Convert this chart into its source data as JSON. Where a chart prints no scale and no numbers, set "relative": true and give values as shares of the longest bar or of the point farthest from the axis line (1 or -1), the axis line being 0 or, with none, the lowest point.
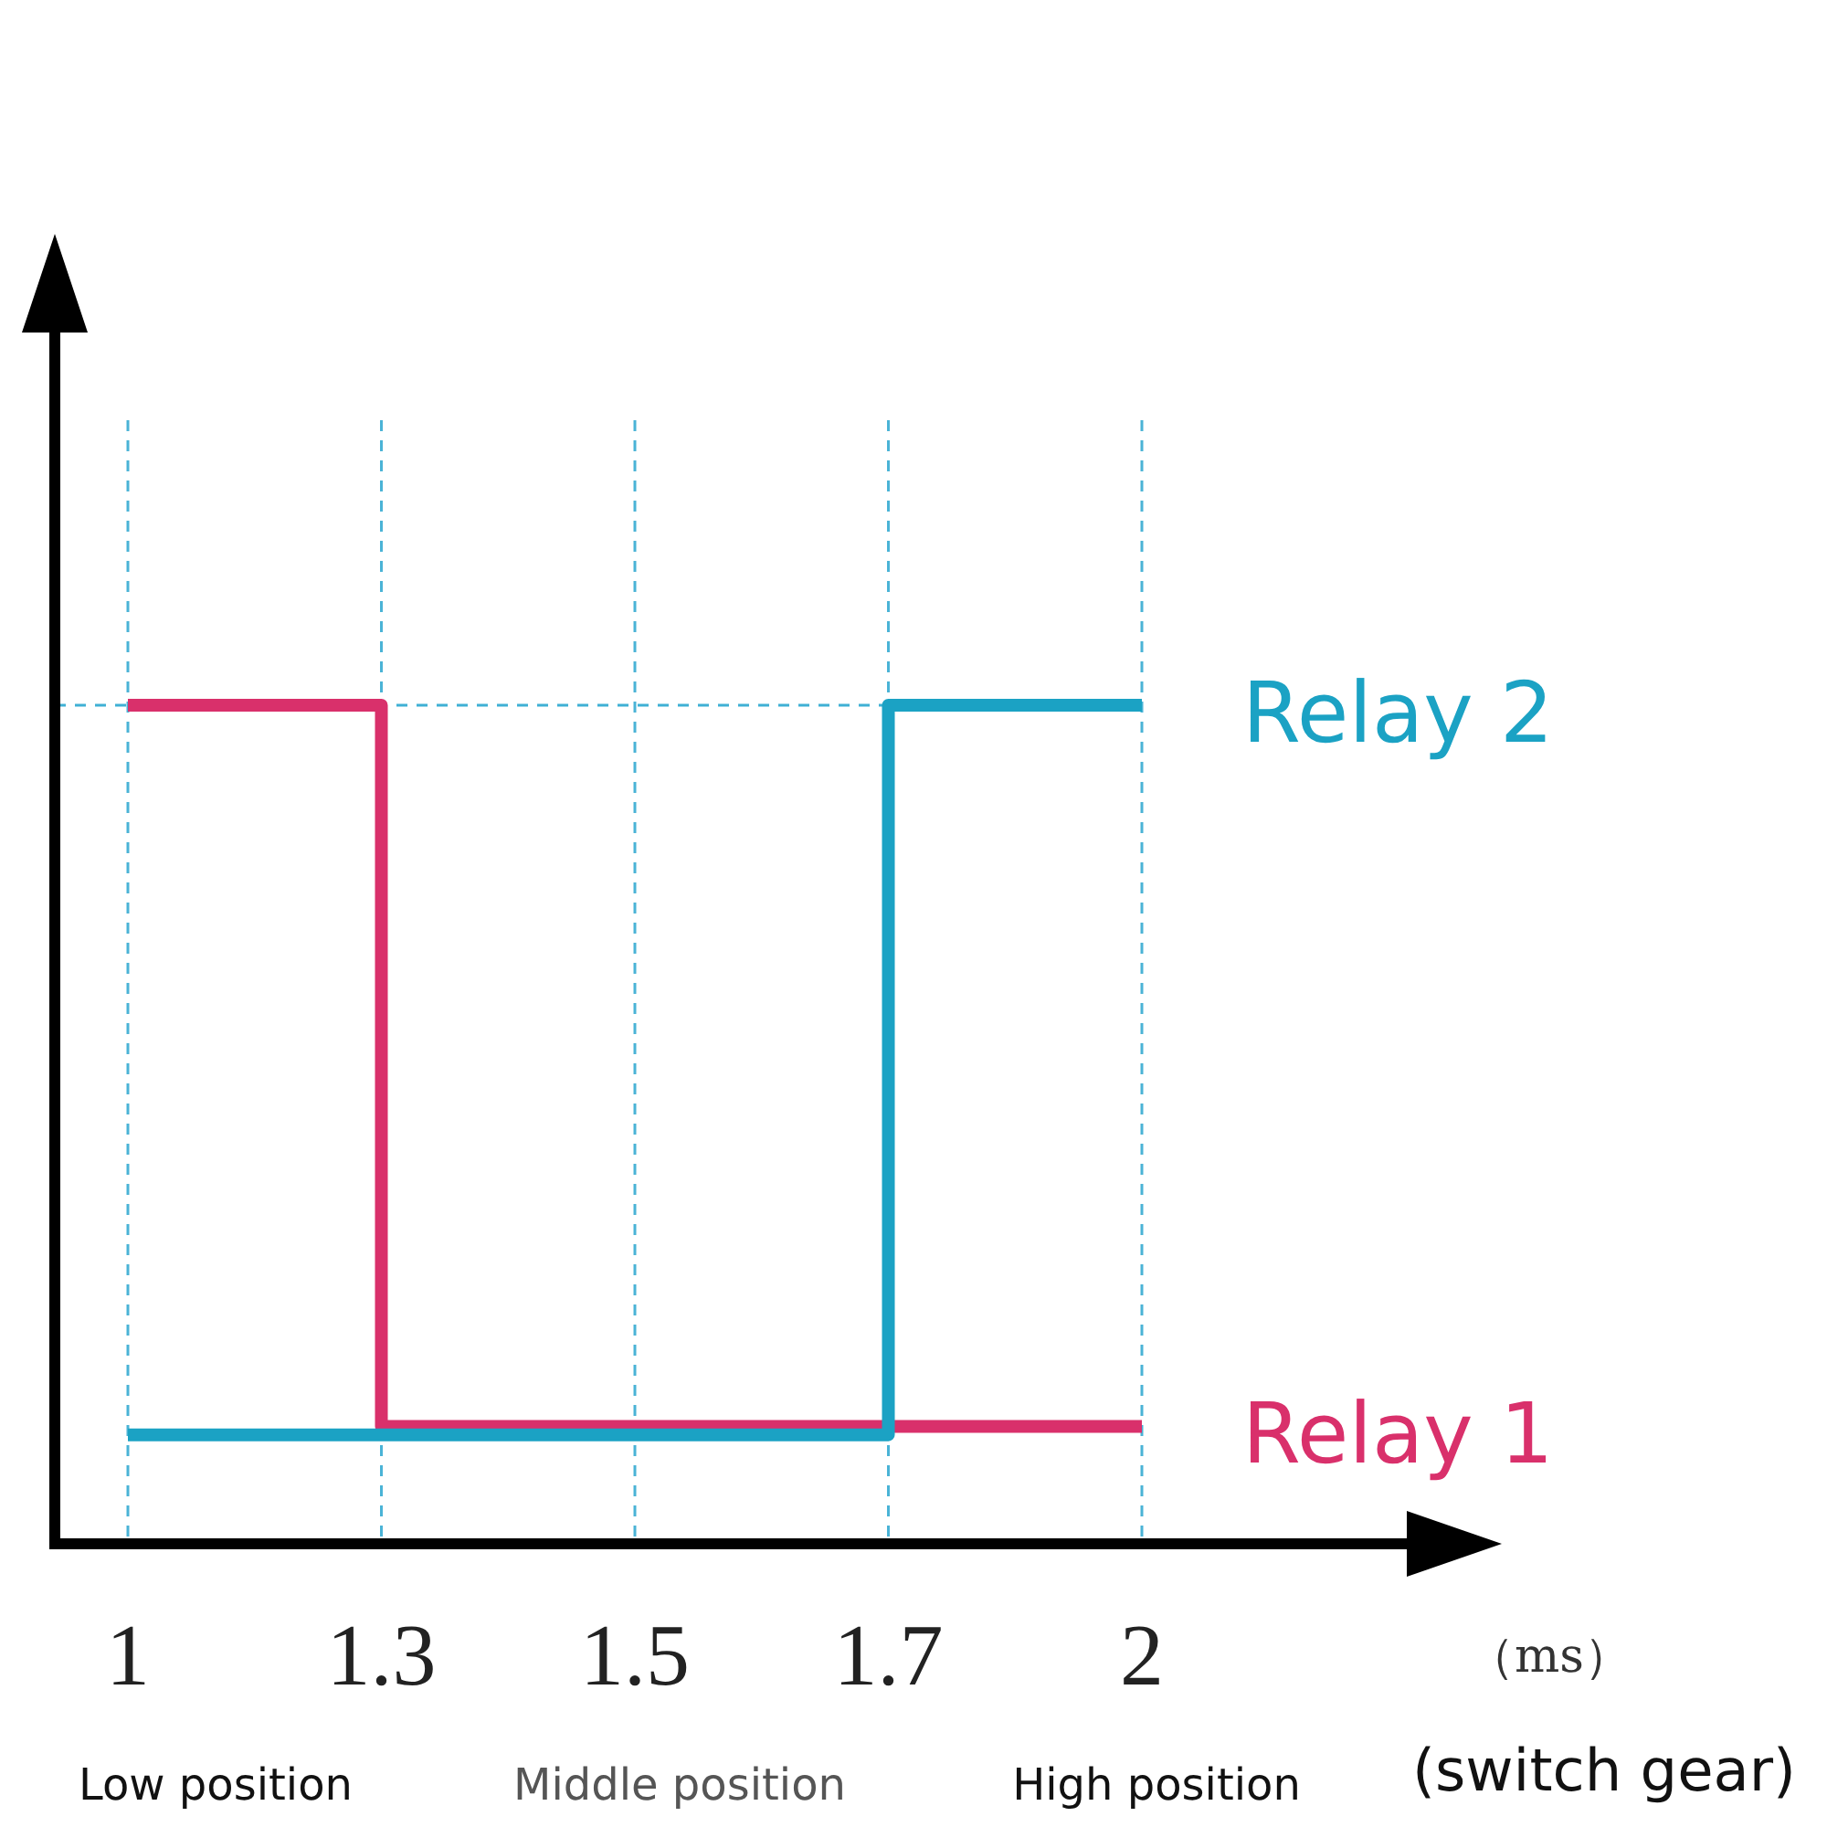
{
  "chart_data": {
    "type": "step",
    "relative": true,
    "categories": [
      "1",
      "1.3",
      "1.5",
      "1.7",
      "2"
    ],
    "series": [
      {
        "name": "Relay 1",
        "color": "#d9306b",
        "values": [
          1,
          0.14,
          0.14,
          0.14,
          0.14
        ]
      },
      {
        "name": "Relay 2",
        "color": "#1ba2c4",
        "values": [
          0.13,
          0.13,
          0.13,
          1,
          1
        ]
      }
    ],
    "grid": "x",
    "line_style": "solid",
    "ref_lines": [
      {
        "axis": "y",
        "value": 1,
        "color": "#3fb0d4",
        "line_style": "dashed"
      }
    ],
    "annotations": [
      "（ms）",
      "Low position",
      "Middle position",
      "High position",
      "(switch gear)"
    ]
  }
}
